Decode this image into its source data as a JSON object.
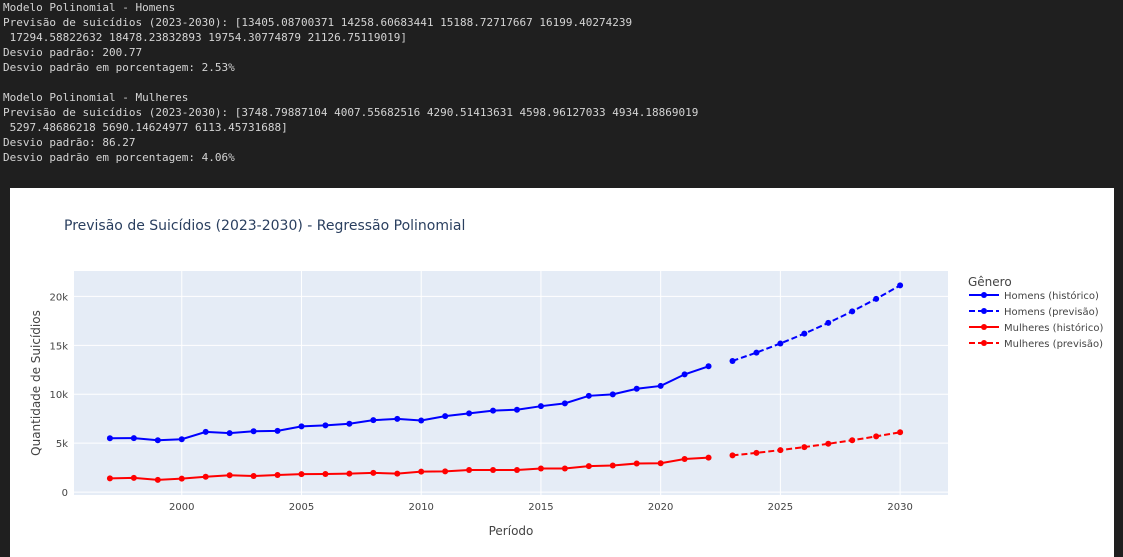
{
  "console": {
    "lines": [
      "Modelo Polinomial - Homens",
      "Previsão de suicídios (2023-2030): [13405.08700371 14258.60683441 15188.72717667 16199.40274239",
      " 17294.58822632 18478.23832893 19754.30774879 21126.75119019]",
      "Desvio padrão: 200.77",
      "Desvio padrão em porcentagem: 2.53%",
      "",
      "Modelo Polinomial - Mulheres",
      "Previsão de suicídios (2023-2030): [3748.79887104 4007.55682516 4290.51413631 4598.96127033 4934.18869019",
      " 5297.48686218 5690.14624977 6113.45731688]",
      "Desvio padrão: 86.27",
      "Desvio padrão em porcentagem: 4.06%"
    ]
  },
  "chart_data": {
    "type": "line",
    "title": "Previsão de Suicídios (2023-2030) - Regressão Polinomial",
    "xlabel": "Período",
    "ylabel": "Quantidade de Suicídios",
    "xlim": [
      1995.5,
      2032
    ],
    "ylim": [
      -300,
      22600
    ],
    "xticks": [
      2000,
      2005,
      2010,
      2015,
      2020,
      2025,
      2030
    ],
    "yticks": [
      0,
      5000,
      10000,
      15000,
      20000
    ],
    "ytick_labels": [
      "0",
      "5k",
      "10k",
      "15k",
      "20k"
    ],
    "grid": true,
    "legend_title": "Gênero",
    "legend_position": "right",
    "series": [
      {
        "name": "Homens (histórico)",
        "color": "#0000ff",
        "dash": "solid",
        "x": [
          1997,
          1998,
          1999,
          2000,
          2001,
          2002,
          2003,
          2004,
          2005,
          2006,
          2007,
          2008,
          2009,
          2010,
          2011,
          2012,
          2013,
          2014,
          2015,
          2016,
          2017,
          2018,
          2019,
          2020,
          2021,
          2022
        ],
        "y": [
          5500,
          5520,
          5300,
          5400,
          6150,
          6020,
          6220,
          6260,
          6720,
          6820,
          6980,
          7350,
          7480,
          7320,
          7760,
          8050,
          8330,
          8420,
          8780,
          9070,
          9840,
          9990,
          10560,
          10850,
          12030,
          12860
        ]
      },
      {
        "name": "Homens (previsão)",
        "color": "#0000ff",
        "dash": "dash",
        "x": [
          2023,
          2024,
          2025,
          2026,
          2027,
          2028,
          2029,
          2030
        ],
        "y": [
          13405.09,
          14258.61,
          15188.73,
          16199.4,
          17294.59,
          18478.24,
          19754.31,
          21126.75
        ]
      },
      {
        "name": "Mulheres (histórico)",
        "color": "#ff0000",
        "dash": "solid",
        "x": [
          1997,
          1998,
          1999,
          2000,
          2001,
          2002,
          2003,
          2004,
          2005,
          2006,
          2007,
          2008,
          2009,
          2010,
          2011,
          2012,
          2013,
          2014,
          2015,
          2016,
          2017,
          2018,
          2019,
          2020,
          2021,
          2022
        ],
        "y": [
          1400,
          1450,
          1250,
          1380,
          1560,
          1720,
          1640,
          1750,
          1840,
          1850,
          1890,
          1960,
          1890,
          2090,
          2110,
          2260,
          2250,
          2250,
          2410,
          2410,
          2650,
          2720,
          2920,
          2950,
          3380,
          3520
        ]
      },
      {
        "name": "Mulheres (previsão)",
        "color": "#ff0000",
        "dash": "dash",
        "x": [
          2023,
          2024,
          2025,
          2026,
          2027,
          2028,
          2029,
          2030
        ],
        "y": [
          3748.8,
          4007.56,
          4290.51,
          4598.96,
          4934.19,
          5297.49,
          5690.15,
          6113.46
        ]
      }
    ]
  }
}
